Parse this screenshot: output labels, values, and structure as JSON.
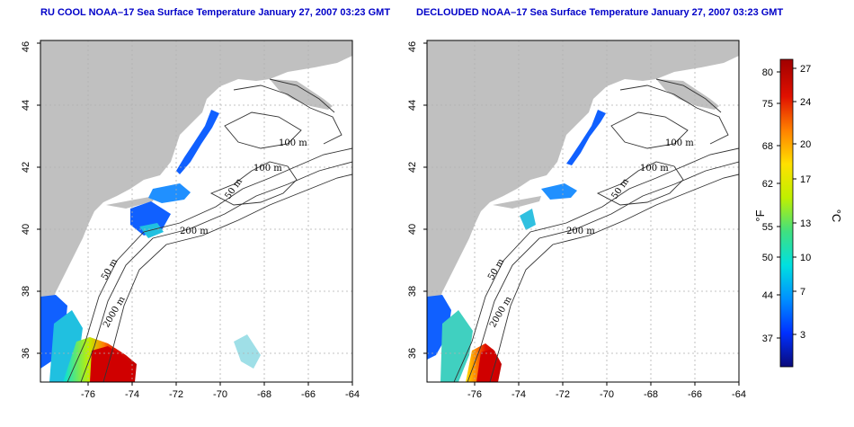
{
  "colors": {
    "title": "#0000c8",
    "land": "#c0c0c0",
    "grid": "#b0b0b0",
    "contour": "#333333"
  },
  "panels": [
    {
      "title": "RU COOL NOAA–17 Sea Surface Temperature January 27, 2007 03:23 GMT",
      "x_ticks": [
        "-76",
        "-74",
        "-72",
        "-70",
        "-68",
        "-66",
        "-64"
      ],
      "y_ticks": [
        "36",
        "38",
        "40",
        "42",
        "44",
        "46"
      ],
      "contour_labels": [
        "100 m",
        "100 m",
        "50 m",
        "200 m",
        "50 m",
        "2000 m"
      ]
    },
    {
      "title": "DECLOUDED NOAA–17 Sea Surface Temperature January 27, 2007 03:23 GMT",
      "x_ticks": [
        "-76",
        "-74",
        "-72",
        "-70",
        "-68",
        "-66",
        "-64"
      ],
      "y_ticks": [
        "36",
        "38",
        "40",
        "42",
        "44",
        "46"
      ],
      "contour_labels": [
        "100 m",
        "100 m",
        "50 m",
        "200 m",
        "50 m",
        "2000 m"
      ]
    }
  ],
  "colorbar": {
    "unit_f": "°F",
    "unit_c": "°C",
    "f_ticks": [
      "80",
      "75",
      "68",
      "62",
      "55",
      "50",
      "44",
      "37"
    ],
    "c_ticks": [
      "27",
      "24",
      "20",
      "17",
      "13",
      "10",
      "7",
      "3"
    ],
    "gradient": [
      "#0a0a7a",
      "#0030ff",
      "#0090ff",
      "#00e0e0",
      "#40e080",
      "#c0f000",
      "#ffe000",
      "#ff8000",
      "#e01000",
      "#a00000"
    ]
  }
}
